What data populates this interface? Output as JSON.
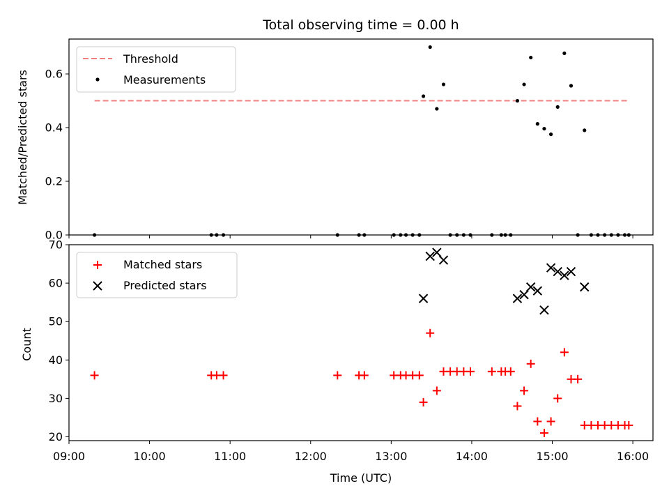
{
  "chart_data": [
    {
      "type": "scatter",
      "title": "Total observing time = 0.00 h",
      "xlabel": "",
      "ylabel": "Matched/Predicted stars",
      "x_range": [
        "09:00",
        "16:15"
      ],
      "ylim": [
        0,
        0.73
      ],
      "y_ticks": [
        "0.0",
        "0.2",
        "0.4",
        "0.6"
      ],
      "grid": false,
      "legend_position": "upper-left",
      "threshold": {
        "name": "Threshold",
        "value": 0.5,
        "x_from": "09:19",
        "x_to": "15:57",
        "style": "dashed",
        "color": "#f08080"
      },
      "series": [
        {
          "name": "Measurements",
          "marker": "dot",
          "color": "#000000",
          "points": [
            [
              "09:19",
              0.0
            ],
            [
              "10:46",
              0.0
            ],
            [
              "10:50",
              0.0
            ],
            [
              "10:55",
              0.0
            ],
            [
              "12:20",
              0.0
            ],
            [
              "12:36",
              0.0
            ],
            [
              "12:40",
              0.0
            ],
            [
              "13:02",
              0.0
            ],
            [
              "13:07",
              0.0
            ],
            [
              "13:11",
              0.0
            ],
            [
              "13:16",
              0.0
            ],
            [
              "13:21",
              0.0
            ],
            [
              "13:24",
              0.517
            ],
            [
              "13:29",
              0.7
            ],
            [
              "13:34",
              0.47
            ],
            [
              "13:39",
              0.561
            ],
            [
              "13:44",
              0.0
            ],
            [
              "13:49",
              0.0
            ],
            [
              "13:54",
              0.0
            ],
            [
              "13:59",
              0.0
            ],
            [
              "14:15",
              0.0
            ],
            [
              "14:22",
              0.0
            ],
            [
              "14:25",
              0.0
            ],
            [
              "14:29",
              0.0
            ],
            [
              "14:34",
              0.5
            ],
            [
              "14:39",
              0.561
            ],
            [
              "14:44",
              0.661
            ],
            [
              "14:49",
              0.414
            ],
            [
              "14:54",
              0.396
            ],
            [
              "14:59",
              0.375
            ],
            [
              "15:04",
              0.477
            ],
            [
              "15:09",
              0.677
            ],
            [
              "15:14",
              0.556
            ],
            [
              "15:19",
              0.0
            ],
            [
              "15:24",
              0.39
            ],
            [
              "15:29",
              0.0
            ],
            [
              "15:34",
              0.0
            ],
            [
              "15:39",
              0.0
            ],
            [
              "15:44",
              0.0
            ],
            [
              "15:49",
              0.0
            ],
            [
              "15:54",
              0.0
            ],
            [
              "15:57",
              0.0
            ]
          ]
        }
      ]
    },
    {
      "type": "scatter",
      "title": "",
      "xlabel": "Time (UTC)",
      "ylabel": "Count",
      "x_range": [
        "09:00",
        "16:15"
      ],
      "x_ticks": [
        "09:00",
        "10:00",
        "11:00",
        "12:00",
        "13:00",
        "14:00",
        "15:00",
        "16:00"
      ],
      "ylim": [
        19,
        70
      ],
      "y_ticks": [
        "20",
        "30",
        "40",
        "50",
        "60",
        "70"
      ],
      "grid": false,
      "legend_position": "upper-left",
      "series": [
        {
          "name": "Matched stars",
          "marker": "plus",
          "color": "#ff0000",
          "points": [
            [
              "09:19",
              36
            ],
            [
              "10:46",
              36
            ],
            [
              "10:50",
              36
            ],
            [
              "10:55",
              36
            ],
            [
              "12:20",
              36
            ],
            [
              "12:36",
              36
            ],
            [
              "12:40",
              36
            ],
            [
              "13:02",
              36
            ],
            [
              "13:07",
              36
            ],
            [
              "13:11",
              36
            ],
            [
              "13:16",
              36
            ],
            [
              "13:21",
              36
            ],
            [
              "13:24",
              29
            ],
            [
              "13:29",
              47
            ],
            [
              "13:34",
              32
            ],
            [
              "13:39",
              37
            ],
            [
              "13:44",
              37
            ],
            [
              "13:49",
              37
            ],
            [
              "13:54",
              37
            ],
            [
              "13:59",
              37
            ],
            [
              "14:15",
              37
            ],
            [
              "14:22",
              37
            ],
            [
              "14:25",
              37
            ],
            [
              "14:29",
              37
            ],
            [
              "14:34",
              28
            ],
            [
              "14:39",
              32
            ],
            [
              "14:44",
              39
            ],
            [
              "14:49",
              24
            ],
            [
              "14:54",
              21
            ],
            [
              "14:59",
              24
            ],
            [
              "15:04",
              30
            ],
            [
              "15:09",
              42
            ],
            [
              "15:14",
              35
            ],
            [
              "15:19",
              35
            ],
            [
              "15:24",
              23
            ],
            [
              "15:29",
              23
            ],
            [
              "15:34",
              23
            ],
            [
              "15:39",
              23
            ],
            [
              "15:44",
              23
            ],
            [
              "15:49",
              23
            ],
            [
              "15:54",
              23
            ],
            [
              "15:57",
              23
            ]
          ]
        },
        {
          "name": "Predicted stars",
          "marker": "x",
          "color": "#000000",
          "points": [
            [
              "13:24",
              56
            ],
            [
              "13:29",
              67
            ],
            [
              "13:34",
              68
            ],
            [
              "13:39",
              66
            ],
            [
              "14:34",
              56
            ],
            [
              "14:39",
              57
            ],
            [
              "14:44",
              59
            ],
            [
              "14:49",
              58
            ],
            [
              "14:54",
              53
            ],
            [
              "14:59",
              64
            ],
            [
              "15:04",
              63
            ],
            [
              "15:09",
              62
            ],
            [
              "15:14",
              63
            ],
            [
              "15:24",
              59
            ]
          ]
        }
      ]
    }
  ]
}
